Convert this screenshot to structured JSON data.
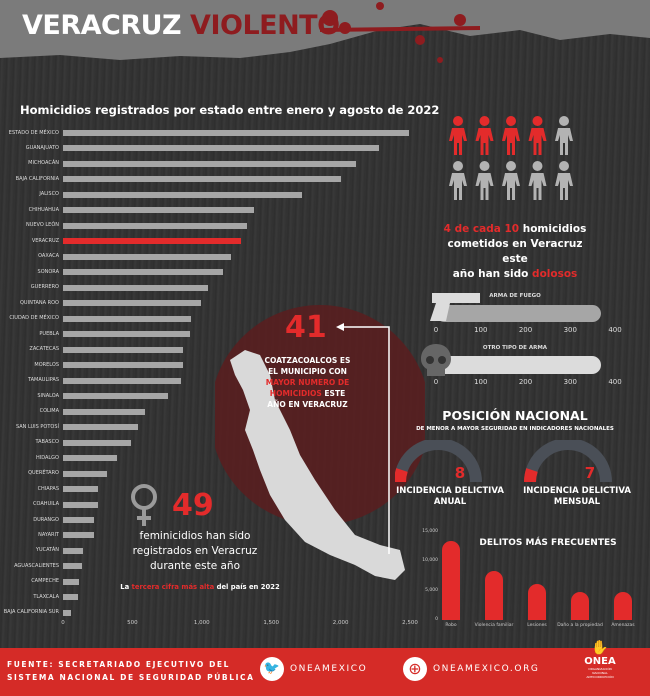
{
  "header": {
    "title_white": "VERACRUZ",
    "title_red": "VIOLENTO"
  },
  "chart_data": [
    {
      "type": "bar",
      "orientation": "horizontal",
      "title": "Homicidios registrados por estado entre enero y agosto de 2022",
      "categories": [
        "ESTADO DE MÉXICO",
        "GUANAJUATO",
        "MICHOACÁN",
        "BAJA CALIFORNIA",
        "JALISCO",
        "CHIHUAHUA",
        "NUEVO LEÓN",
        "VERACRUZ",
        "OAXACA",
        "SONORA",
        "GUERRERO",
        "QUINTANA ROO",
        "CIUDAD DE MÉXICO",
        "PUEBLA",
        "ZACATECAS",
        "MORELOS",
        "TAMAULIPAS",
        "SINALOA",
        "COLIMA",
        "SAN LUIS POTOSÍ",
        "TABASCO",
        "HIDALGO",
        "QUERÉTARO",
        "CHIAPAS",
        "COAHUILA",
        "DURANGO",
        "NAYARIT",
        "YUCATÁN",
        "AGUASCALIENTES",
        "CAMPECHE",
        "TLAXCALA",
        "BAJA CALIFORNIA SUR"
      ],
      "values": [
        2490,
        2275,
        2110,
        2000,
        1720,
        1375,
        1325,
        1280,
        1210,
        1150,
        1045,
        995,
        920,
        915,
        865,
        865,
        850,
        755,
        590,
        540,
        490,
        390,
        317,
        252,
        252,
        223,
        223,
        144,
        137,
        115,
        108,
        58
      ],
      "highlight": "VERACRUZ",
      "xlim": [
        0,
        2500
      ],
      "xticks": [
        "0",
        "500",
        "1,000",
        "1,500",
        "2,000",
        "2,500"
      ],
      "bar_color": "#a6a6a6",
      "highlight_color": "#e32b2b"
    },
    {
      "type": "bar",
      "title": "DELITOS MÁS FRECUENTES",
      "categories": [
        "Robo",
        "Violencia familiar",
        "Lesiones",
        "Daño a la propiedad",
        "Amenazas"
      ],
      "values": [
        13500,
        8270,
        6160,
        4850,
        4730
      ],
      "ylim": [
        0,
        15000
      ],
      "yticks": [
        "0",
        "5,000",
        "10,000",
        "15,000"
      ],
      "bar_color": "#e32b2b"
    },
    {
      "type": "bar",
      "orientation": "horizontal",
      "categories": [
        "ARMA DE FUEGO",
        "OTRO TIPO DE ARMA"
      ],
      "values": [
        366,
        366
      ],
      "xlim": [
        0,
        400
      ],
      "xticks": [
        "0",
        "100",
        "200",
        "300",
        "400"
      ]
    }
  ],
  "dolosos": {
    "ratio": "4 de cada 10",
    "filled": 4,
    "total": 10,
    "line1_rest": "homicidios",
    "line2": "cometidos en Veracruz este",
    "line3_a": "año han sido",
    "line3_red": "dolosos"
  },
  "coatza": {
    "number": "41",
    "l1": "COATZACOALCOS ES",
    "l2": "EL MUNICIPIO CON",
    "l3_red": "MAYOR NUMERO DE",
    "l4_red": "HOMICIDIOS",
    "l4_rest": "ESTE",
    "l5": "AÑO  EN VERACRUZ"
  },
  "feminicidios": {
    "number": "49",
    "l1": "feminicidios han sido",
    "l2": "registrados en Veracruz",
    "l3": "durante este año",
    "note_a": "La",
    "note_red": "tercera cifra más alta",
    "note_b": "del país en 2022"
  },
  "posicion": {
    "title": "POSICIÓN NACIONAL",
    "subtitle": "DE MENOR A MAYOR SEGURIDAD EN INDICADORES NACIONALES",
    "gauges": [
      {
        "value": "8",
        "l1": "INCIDENCIA DELICTIVA",
        "l2": "ANUAL"
      },
      {
        "value": "7",
        "l1": "INCIDENCIA DELICTIVA",
        "l2": "MENSUAL"
      }
    ]
  },
  "footer": {
    "source_l1": "FUENTE: SECRETARIADO EJECUTIVO DEL",
    "source_l2": "SISTEMA NACIONAL DE SEGURIDAD PÚBLICA",
    "twitter": "ONEAMEXICO",
    "web": "ONEAMEXICO.ORG",
    "logo": "ONEA",
    "logo_sub": "ORGANIZACIÓN NACIONAL ANTICORRUPCIÓN"
  },
  "colors": {
    "red": "#e32b2b",
    "dark_red": "#8e1c1f",
    "footer": "#d52b27",
    "gray": "#a6a6a6"
  }
}
